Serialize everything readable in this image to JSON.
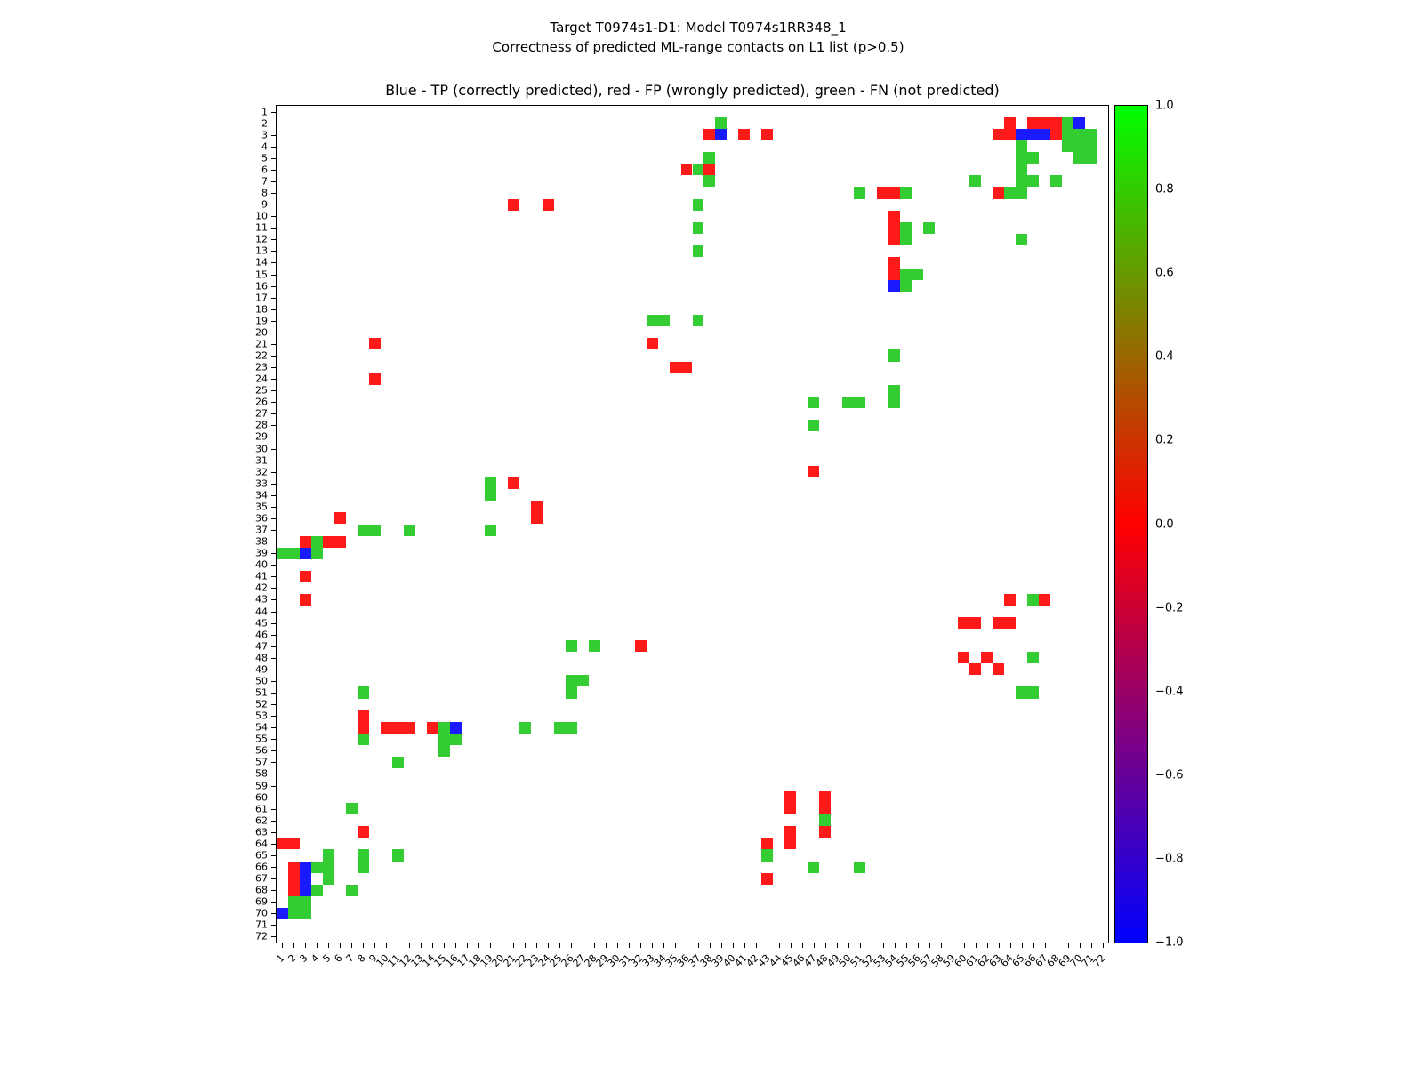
{
  "figure": {
    "title_line1": "Target T0974s1-D1: Model T0974s1RR348_1",
    "title_line2": "Correctness of predicted ML-range contacts on L1 list (p>0.5)"
  },
  "chart_data": {
    "type": "heatmap",
    "title": "Blue - TP (correctly predicted), red - FP (wrongly predicted), green - FN (not predicted)",
    "x_range": [
      1,
      72
    ],
    "y_range": [
      1,
      72
    ],
    "x_ticklabels": [
      "1",
      "2",
      "3",
      "4",
      "5",
      "6",
      "7",
      "8",
      "9",
      "10",
      "11",
      "12",
      "13",
      "14",
      "15",
      "16",
      "17",
      "18",
      "19",
      "20",
      "21",
      "22",
      "23",
      "24",
      "25",
      "26",
      "27",
      "28",
      "29",
      "30",
      "31",
      "32",
      "33",
      "34",
      "35",
      "36",
      "37",
      "38",
      "39",
      "40",
      "41",
      "42",
      "43",
      "44",
      "45",
      "46",
      "47",
      "48",
      "49",
      "50",
      "51",
      "52",
      "53",
      "54",
      "55",
      "56",
      "57",
      "58",
      "59",
      "60",
      "61",
      "62",
      "63",
      "64",
      "65",
      "66",
      "67",
      "68",
      "69",
      "70",
      "71",
      "72"
    ],
    "y_ticklabels": [
      "1",
      "2",
      "3",
      "4",
      "5",
      "6",
      "7",
      "8",
      "9",
      "10",
      "11",
      "12",
      "13",
      "14",
      "15",
      "16",
      "17",
      "18",
      "19",
      "20",
      "21",
      "22",
      "23",
      "24",
      "25",
      "26",
      "27",
      "28",
      "29",
      "30",
      "31",
      "32",
      "33",
      "34",
      "35",
      "36",
      "37",
      "38",
      "39",
      "40",
      "41",
      "42",
      "43",
      "44",
      "45",
      "46",
      "47",
      "48",
      "49",
      "50",
      "51",
      "52",
      "53",
      "54",
      "55",
      "56",
      "57",
      "58",
      "59",
      "60",
      "61",
      "62",
      "63",
      "64",
      "65",
      "66",
      "67",
      "68",
      "69",
      "70",
      "71",
      "72"
    ],
    "legend": {
      "TP": "Blue - TP (correctly predicted)",
      "FP": "red - FP (wrongly predicted)",
      "FN": "green - FN (not predicted)"
    },
    "colors": {
      "TP": "#1a1aff",
      "FP": "#ff1a1a",
      "FN": "#33cc33"
    },
    "cells": [
      [
        2,
        39,
        "FN"
      ],
      [
        2,
        64,
        "FP"
      ],
      [
        2,
        66,
        "FP"
      ],
      [
        2,
        67,
        "FP"
      ],
      [
        2,
        68,
        "FP"
      ],
      [
        2,
        69,
        "FN"
      ],
      [
        2,
        70,
        "TP"
      ],
      [
        3,
        38,
        "FP"
      ],
      [
        3,
        39,
        "TP"
      ],
      [
        3,
        41,
        "FP"
      ],
      [
        3,
        43,
        "FP"
      ],
      [
        3,
        63,
        "FP"
      ],
      [
        3,
        64,
        "FP"
      ],
      [
        3,
        65,
        "TP"
      ],
      [
        3,
        66,
        "TP"
      ],
      [
        3,
        67,
        "TP"
      ],
      [
        3,
        68,
        "FP"
      ],
      [
        3,
        69,
        "FN"
      ],
      [
        3,
        70,
        "FN"
      ],
      [
        3,
        71,
        "FN"
      ],
      [
        4,
        65,
        "FN"
      ],
      [
        4,
        69,
        "FN"
      ],
      [
        4,
        70,
        "FN"
      ],
      [
        4,
        71,
        "FN"
      ],
      [
        5,
        38,
        "FN"
      ],
      [
        5,
        65,
        "FN"
      ],
      [
        5,
        66,
        "FN"
      ],
      [
        5,
        70,
        "FN"
      ],
      [
        5,
        71,
        "FN"
      ],
      [
        6,
        36,
        "FP"
      ],
      [
        6,
        37,
        "FN"
      ],
      [
        6,
        38,
        "FP"
      ],
      [
        6,
        65,
        "FN"
      ],
      [
        7,
        38,
        "FN"
      ],
      [
        7,
        61,
        "FN"
      ],
      [
        7,
        65,
        "FN"
      ],
      [
        7,
        66,
        "FN"
      ],
      [
        7,
        68,
        "FN"
      ],
      [
        8,
        51,
        "FN"
      ],
      [
        8,
        53,
        "FP"
      ],
      [
        8,
        54,
        "FP"
      ],
      [
        8,
        55,
        "FN"
      ],
      [
        8,
        63,
        "FP"
      ],
      [
        8,
        64,
        "FN"
      ],
      [
        8,
        65,
        "FN"
      ],
      [
        9,
        21,
        "FP"
      ],
      [
        9,
        24,
        "FP"
      ],
      [
        9,
        37,
        "FN"
      ],
      [
        10,
        54,
        "FP"
      ],
      [
        11,
        37,
        "FN"
      ],
      [
        11,
        54,
        "FP"
      ],
      [
        11,
        55,
        "FN"
      ],
      [
        11,
        57,
        "FN"
      ],
      [
        12,
        54,
        "FP"
      ],
      [
        12,
        55,
        "FN"
      ],
      [
        12,
        65,
        "FN"
      ],
      [
        13,
        37,
        "FN"
      ],
      [
        14,
        54,
        "FP"
      ],
      [
        15,
        54,
        "FP"
      ],
      [
        15,
        55,
        "FN"
      ],
      [
        15,
        56,
        "FN"
      ],
      [
        16,
        54,
        "TP"
      ],
      [
        16,
        55,
        "FN"
      ],
      [
        19,
        33,
        "FN"
      ],
      [
        19,
        34,
        "FN"
      ],
      [
        19,
        37,
        "FN"
      ],
      [
        21,
        9,
        "FP"
      ],
      [
        21,
        33,
        "FP"
      ],
      [
        22,
        54,
        "FN"
      ],
      [
        23,
        35,
        "FP"
      ],
      [
        23,
        36,
        "FP"
      ],
      [
        24,
        9,
        "FP"
      ],
      [
        25,
        54,
        "FN"
      ],
      [
        26,
        47,
        "FN"
      ],
      [
        26,
        50,
        "FN"
      ],
      [
        26,
        51,
        "FN"
      ],
      [
        26,
        54,
        "FN"
      ],
      [
        28,
        47,
        "FN"
      ],
      [
        32,
        47,
        "FP"
      ],
      [
        33,
        19,
        "FN"
      ],
      [
        33,
        21,
        "FP"
      ],
      [
        34,
        19,
        "FN"
      ],
      [
        35,
        23,
        "FP"
      ],
      [
        36,
        6,
        "FP"
      ],
      [
        36,
        23,
        "FP"
      ],
      [
        37,
        8,
        "FN"
      ],
      [
        37,
        9,
        "FN"
      ],
      [
        37,
        12,
        "FN"
      ],
      [
        37,
        19,
        "FN"
      ],
      [
        38,
        3,
        "FP"
      ],
      [
        38,
        4,
        "FN"
      ],
      [
        38,
        5,
        "FP"
      ],
      [
        38,
        6,
        "FP"
      ],
      [
        39,
        1,
        "FN"
      ],
      [
        39,
        2,
        "FN"
      ],
      [
        39,
        3,
        "TP"
      ],
      [
        39,
        4,
        "FN"
      ],
      [
        41,
        3,
        "FP"
      ],
      [
        43,
        3,
        "FP"
      ],
      [
        43,
        64,
        "FP"
      ],
      [
        43,
        66,
        "FN"
      ],
      [
        43,
        67,
        "FP"
      ],
      [
        45,
        60,
        "FP"
      ],
      [
        45,
        61,
        "FP"
      ],
      [
        45,
        63,
        "FP"
      ],
      [
        45,
        64,
        "FP"
      ],
      [
        47,
        26,
        "FN"
      ],
      [
        47,
        28,
        "FN"
      ],
      [
        47,
        32,
        "FP"
      ],
      [
        48,
        60,
        "FP"
      ],
      [
        48,
        62,
        "FP"
      ],
      [
        48,
        66,
        "FN"
      ],
      [
        49,
        61,
        "FP"
      ],
      [
        49,
        63,
        "FP"
      ],
      [
        50,
        26,
        "FN"
      ],
      [
        50,
        27,
        "FN"
      ],
      [
        51,
        8,
        "FN"
      ],
      [
        51,
        26,
        "FN"
      ],
      [
        51,
        65,
        "FN"
      ],
      [
        51,
        66,
        "FN"
      ],
      [
        53,
        8,
        "FP"
      ],
      [
        54,
        8,
        "FP"
      ],
      [
        54,
        10,
        "FP"
      ],
      [
        54,
        11,
        "FP"
      ],
      [
        54,
        12,
        "FP"
      ],
      [
        54,
        14,
        "FP"
      ],
      [
        54,
        15,
        "FN"
      ],
      [
        54,
        16,
        "TP"
      ],
      [
        54,
        22,
        "FN"
      ],
      [
        54,
        25,
        "FN"
      ],
      [
        54,
        26,
        "FN"
      ],
      [
        55,
        8,
        "FN"
      ],
      [
        55,
        15,
        "FN"
      ],
      [
        55,
        16,
        "FN"
      ],
      [
        56,
        15,
        "FN"
      ],
      [
        57,
        11,
        "FN"
      ],
      [
        60,
        45,
        "FP"
      ],
      [
        60,
        48,
        "FP"
      ],
      [
        61,
        7,
        "FN"
      ],
      [
        61,
        45,
        "FP"
      ],
      [
        61,
        48,
        "FP"
      ],
      [
        62,
        48,
        "FN"
      ],
      [
        63,
        8,
        "FP"
      ],
      [
        63,
        45,
        "FP"
      ],
      [
        63,
        48,
        "FP"
      ],
      [
        64,
        1,
        "FP"
      ],
      [
        64,
        2,
        "FP"
      ],
      [
        64,
        43,
        "FP"
      ],
      [
        64,
        45,
        "FP"
      ],
      [
        65,
        5,
        "FN"
      ],
      [
        65,
        8,
        "FN"
      ],
      [
        65,
        11,
        "FN"
      ],
      [
        65,
        43,
        "FN"
      ],
      [
        66,
        2,
        "FP"
      ],
      [
        66,
        3,
        "TP"
      ],
      [
        66,
        4,
        "FN"
      ],
      [
        66,
        5,
        "FN"
      ],
      [
        66,
        8,
        "FN"
      ],
      [
        66,
        47,
        "FN"
      ],
      [
        66,
        51,
        "FN"
      ],
      [
        67,
        2,
        "FP"
      ],
      [
        67,
        3,
        "TP"
      ],
      [
        67,
        5,
        "FN"
      ],
      [
        67,
        43,
        "FP"
      ],
      [
        68,
        2,
        "FP"
      ],
      [
        68,
        3,
        "TP"
      ],
      [
        68,
        4,
        "FN"
      ],
      [
        68,
        7,
        "FN"
      ],
      [
        69,
        2,
        "FN"
      ],
      [
        69,
        3,
        "FN"
      ],
      [
        70,
        1,
        "TP"
      ],
      [
        70,
        2,
        "FN"
      ],
      [
        70,
        3,
        "FN"
      ]
    ],
    "colorbar": {
      "ticks": [
        "1.0",
        "0.8",
        "0.6",
        "0.4",
        "0.2",
        "0.0",
        "−0.2",
        "−0.4",
        "−0.6",
        "−0.8",
        "−1.0"
      ],
      "range": [
        -1.0,
        1.0
      ],
      "gradient_top_to_bottom": [
        "#00ff00",
        "#40bf00",
        "#808000",
        "#bf4000",
        "#ff0000",
        "#bf0040",
        "#800080",
        "#4000bf",
        "#0000ff"
      ]
    }
  }
}
